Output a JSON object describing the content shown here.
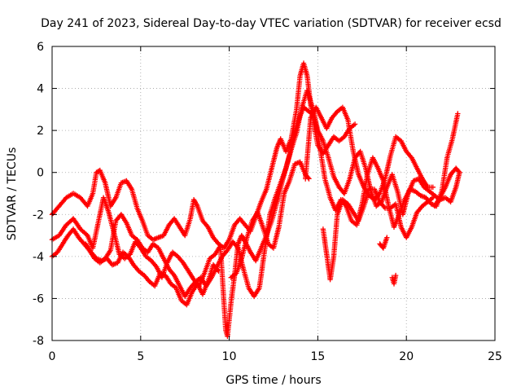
{
  "chart_data": {
    "type": "scatter",
    "title": "Day 241 of 2023, Sidereal Day-to-day VTEC variation (SDTVAR) for receiver ecsd",
    "xlabel": "GPS time / hours",
    "ylabel": "SDTVAR / TECUs",
    "xlim": [
      0,
      25
    ],
    "ylim": [
      -8,
      6
    ],
    "x_ticks": [
      0,
      5,
      10,
      15,
      20,
      25
    ],
    "y_ticks": [
      -8,
      -6,
      -4,
      -2,
      0,
      2,
      4,
      6
    ],
    "grid": true,
    "legend": "none",
    "marker": "plus",
    "color": "#ff0000",
    "traces": [
      [
        [
          0.0,
          -2.0
        ],
        [
          0.4,
          -1.6
        ],
        [
          0.8,
          -1.2
        ],
        [
          1.2,
          -1.0
        ],
        [
          1.6,
          -1.2
        ],
        [
          2.0,
          -1.6
        ],
        [
          2.3,
          -1.0
        ],
        [
          2.5,
          0.0
        ],
        [
          2.7,
          0.1
        ],
        [
          3.0,
          -0.5
        ],
        [
          3.3,
          -1.6
        ],
        [
          3.6,
          -1.2
        ],
        [
          3.9,
          -0.5
        ],
        [
          4.2,
          -0.4
        ],
        [
          4.5,
          -0.8
        ],
        [
          4.8,
          -1.7
        ],
        [
          5.1,
          -2.3
        ],
        [
          5.4,
          -3.0
        ],
        [
          5.7,
          -3.2
        ],
        [
          6.0,
          -3.1
        ],
        [
          6.3,
          -3.0
        ],
        [
          6.6,
          -2.5
        ],
        [
          6.9,
          -2.2
        ],
        [
          7.2,
          -2.6
        ],
        [
          7.5,
          -3.0
        ],
        [
          7.8,
          -2.2
        ],
        [
          8.0,
          -1.3
        ],
        [
          8.2,
          -1.6
        ],
        [
          8.5,
          -2.3
        ],
        [
          8.8,
          -2.6
        ],
        [
          9.1,
          -3.1
        ],
        [
          9.4,
          -3.4
        ],
        [
          9.7,
          -3.6
        ],
        [
          10.0,
          -3.2
        ],
        [
          10.3,
          -2.5
        ],
        [
          10.6,
          -2.2
        ],
        [
          10.9,
          -2.5
        ],
        [
          11.2,
          -2.8
        ],
        [
          11.5,
          -2.1
        ],
        [
          11.8,
          -1.4
        ],
        [
          12.1,
          -0.8
        ],
        [
          12.4,
          0.2
        ],
        [
          12.7,
          1.2
        ],
        [
          12.9,
          1.6
        ],
        [
          13.2,
          1.0
        ],
        [
          13.5,
          1.6
        ],
        [
          13.8,
          3.0
        ],
        [
          14.0,
          4.6
        ],
        [
          14.2,
          5.2
        ],
        [
          14.4,
          4.6
        ],
        [
          14.6,
          3.2
        ],
        [
          14.8,
          2.2
        ],
        [
          15.0,
          1.3
        ],
        [
          15.3,
          0.9
        ],
        [
          15.6,
          1.3
        ],
        [
          15.9,
          1.7
        ],
        [
          16.2,
          1.5
        ],
        [
          16.5,
          1.7
        ],
        [
          16.8,
          2.1
        ],
        [
          17.1,
          2.3
        ]
      ],
      [
        [
          0.0,
          -4.0
        ],
        [
          0.3,
          -3.8
        ],
        [
          0.6,
          -3.4
        ],
        [
          0.9,
          -3.0
        ],
        [
          1.2,
          -2.7
        ],
        [
          1.5,
          -3.1
        ],
        [
          1.8,
          -3.4
        ],
        [
          2.1,
          -3.7
        ],
        [
          2.4,
          -4.1
        ],
        [
          2.7,
          -4.3
        ],
        [
          3.0,
          -4.1
        ],
        [
          3.3,
          -3.7
        ],
        [
          3.6,
          -2.3
        ],
        [
          3.9,
          -2.0
        ],
        [
          4.2,
          -2.4
        ],
        [
          4.5,
          -3.0
        ],
        [
          4.8,
          -3.2
        ],
        [
          5.1,
          -3.6
        ],
        [
          5.4,
          -3.8
        ],
        [
          5.7,
          -3.4
        ],
        [
          6.0,
          -3.6
        ],
        [
          6.3,
          -4.1
        ],
        [
          6.6,
          -4.6
        ],
        [
          6.9,
          -4.9
        ],
        [
          7.2,
          -5.4
        ],
        [
          7.5,
          -5.9
        ],
        [
          7.8,
          -5.5
        ],
        [
          8.1,
          -5.2
        ],
        [
          8.4,
          -5.0
        ],
        [
          8.7,
          -5.4
        ],
        [
          9.0,
          -5.0
        ],
        [
          9.3,
          -4.5
        ],
        [
          9.6,
          -4.0
        ],
        [
          9.9,
          -3.7
        ],
        [
          10.2,
          -3.3
        ],
        [
          10.5,
          -3.6
        ],
        [
          10.8,
          -4.6
        ],
        [
          11.1,
          -5.5
        ],
        [
          11.4,
          -5.9
        ],
        [
          11.7,
          -5.5
        ],
        [
          12.0,
          -3.7
        ],
        [
          12.3,
          -2.0
        ],
        [
          12.6,
          -1.2
        ],
        [
          12.9,
          -0.5
        ],
        [
          13.2,
          0.2
        ],
        [
          13.5,
          1.1
        ],
        [
          13.8,
          1.9
        ],
        [
          14.1,
          3.1
        ],
        [
          14.4,
          3.9
        ],
        [
          14.7,
          3.1
        ],
        [
          15.0,
          2.0
        ],
        [
          15.3,
          1.5
        ],
        [
          15.6,
          0.7
        ],
        [
          15.9,
          -0.2
        ],
        [
          16.2,
          -0.7
        ],
        [
          16.5,
          -1.0
        ],
        [
          16.8,
          -0.3
        ],
        [
          17.1,
          0.7
        ],
        [
          17.4,
          1.0
        ],
        [
          17.7,
          0.2
        ],
        [
          18.0,
          -0.9
        ],
        [
          18.3,
          -1.6
        ],
        [
          18.6,
          -1.4
        ],
        [
          18.9,
          -0.7
        ],
        [
          19.2,
          -0.1
        ],
        [
          19.5,
          -0.9
        ],
        [
          19.8,
          -2.0
        ],
        [
          20.1,
          -1.0
        ],
        [
          20.4,
          -0.4
        ],
        [
          20.7,
          -0.3
        ],
        [
          21.0,
          -0.7
        ],
        [
          21.3,
          -0.9
        ],
        [
          21.6,
          -1.1
        ],
        [
          21.9,
          -1.3
        ],
        [
          22.2,
          -1.2
        ],
        [
          22.5,
          -1.4
        ],
        [
          22.8,
          -0.7
        ],
        [
          23.0,
          0.0
        ]
      ],
      [
        [
          0.0,
          -3.2
        ],
        [
          0.4,
          -3.0
        ],
        [
          0.8,
          -2.5
        ],
        [
          1.2,
          -2.2
        ],
        [
          1.6,
          -2.7
        ],
        [
          2.0,
          -3.0
        ],
        [
          2.3,
          -3.6
        ],
        [
          2.6,
          -2.4
        ],
        [
          2.9,
          -1.2
        ],
        [
          3.2,
          -1.9
        ],
        [
          3.5,
          -2.9
        ],
        [
          3.8,
          -3.9
        ],
        [
          4.1,
          -4.1
        ],
        [
          4.4,
          -3.9
        ],
        [
          4.7,
          -3.3
        ],
        [
          5.0,
          -3.6
        ],
        [
          5.3,
          -4.0
        ],
        [
          5.6,
          -4.2
        ],
        [
          5.9,
          -4.5
        ],
        [
          6.2,
          -5.0
        ],
        [
          6.5,
          -4.3
        ],
        [
          6.8,
          -3.8
        ],
        [
          7.1,
          -4.0
        ],
        [
          7.4,
          -4.3
        ],
        [
          7.7,
          -4.7
        ],
        [
          8.0,
          -5.1
        ],
        [
          8.3,
          -5.4
        ],
        [
          8.6,
          -4.8
        ],
        [
          8.9,
          -4.1
        ],
        [
          9.2,
          -3.9
        ],
        [
          9.5,
          -3.5
        ],
        [
          9.8,
          -7.5
        ],
        [
          9.9,
          -7.8
        ],
        [
          10.1,
          -6.2
        ],
        [
          10.3,
          -4.9
        ],
        [
          10.5,
          -3.4
        ],
        [
          10.7,
          -3.0
        ],
        [
          10.9,
          -3.3
        ],
        [
          11.2,
          -3.8
        ],
        [
          11.5,
          -4.2
        ],
        [
          11.8,
          -3.6
        ],
        [
          12.1,
          -3.0
        ],
        [
          12.4,
          -2.3
        ],
        [
          12.7,
          -1.4
        ],
        [
          13.0,
          -0.4
        ],
        [
          13.3,
          0.5
        ],
        [
          13.6,
          1.5
        ],
        [
          13.9,
          2.5
        ],
        [
          14.2,
          3.1
        ],
        [
          14.5,
          2.9
        ],
        [
          14.8,
          2.7
        ],
        [
          15.1,
          1.3
        ],
        [
          15.4,
          -0.3
        ],
        [
          15.7,
          -1.2
        ],
        [
          16.0,
          -1.8
        ],
        [
          16.3,
          -1.3
        ],
        [
          16.6,
          -1.6
        ],
        [
          16.9,
          -2.3
        ],
        [
          17.2,
          -2.5
        ],
        [
          17.5,
          -1.5
        ],
        [
          17.8,
          -0.1
        ],
        [
          18.1,
          0.7
        ],
        [
          18.4,
          0.2
        ],
        [
          18.7,
          -0.4
        ],
        [
          19.0,
          -1.6
        ],
        [
          19.3,
          -2.6
        ],
        [
          19.6,
          -2.0
        ],
        [
          19.9,
          -1.3
        ],
        [
          20.2,
          -0.8
        ],
        [
          20.5,
          -0.9
        ],
        [
          20.8,
          -1.1
        ],
        [
          21.1,
          -1.2
        ],
        [
          21.4,
          -1.5
        ],
        [
          21.7,
          -1.6
        ],
        [
          22.0,
          -0.9
        ],
        [
          22.3,
          0.7
        ],
        [
          22.6,
          1.6
        ],
        [
          22.9,
          2.8
        ]
      ],
      [
        [
          1.9,
          -3.4
        ],
        [
          2.2,
          -3.8
        ],
        [
          2.5,
          -4.1
        ],
        [
          2.8,
          -4.2
        ],
        [
          3.1,
          -4.1
        ],
        [
          3.4,
          -4.4
        ],
        [
          3.7,
          -4.3
        ],
        [
          4.0,
          -3.8
        ],
        [
          4.3,
          -4.0
        ],
        [
          4.6,
          -4.4
        ],
        [
          4.9,
          -4.7
        ],
        [
          5.2,
          -4.9
        ],
        [
          5.5,
          -5.2
        ],
        [
          5.8,
          -5.4
        ],
        [
          6.1,
          -4.8
        ],
        [
          6.4,
          -4.9
        ],
        [
          6.7,
          -5.3
        ],
        [
          7.0,
          -5.5
        ],
        [
          7.3,
          -6.1
        ],
        [
          7.6,
          -6.3
        ],
        [
          7.9,
          -5.7
        ],
        [
          8.2,
          -5.3
        ],
        [
          8.5,
          -5.8
        ],
        [
          8.8,
          -5.2
        ],
        [
          9.1,
          -4.4
        ],
        [
          9.4,
          -4.7
        ]
      ],
      [
        [
          10.1,
          -5.0
        ],
        [
          10.4,
          -4.8
        ],
        [
          10.7,
          -4.1
        ],
        [
          11.0,
          -3.1
        ],
        [
          11.3,
          -2.3
        ],
        [
          11.6,
          -1.9
        ],
        [
          11.9,
          -2.6
        ],
        [
          12.2,
          -3.4
        ],
        [
          12.5,
          -3.6
        ],
        [
          12.8,
          -2.6
        ],
        [
          13.1,
          -1.0
        ],
        [
          13.4,
          -0.4
        ],
        [
          13.7,
          0.4
        ],
        [
          14.0,
          0.5
        ],
        [
          14.3,
          -0.1
        ],
        [
          14.5,
          -0.3
        ]
      ],
      [
        [
          15.3,
          -2.7
        ],
        [
          15.5,
          -3.9
        ],
        [
          15.7,
          -5.1
        ],
        [
          15.9,
          -4.0
        ],
        [
          16.1,
          -2.0
        ],
        [
          16.4,
          -1.3
        ],
        [
          16.7,
          -1.5
        ],
        [
          17.0,
          -1.9
        ],
        [
          17.3,
          -2.3
        ],
        [
          17.6,
          -1.6
        ],
        [
          17.9,
          -0.8
        ],
        [
          18.2,
          -0.8
        ],
        [
          18.5,
          -1.4
        ],
        [
          18.8,
          -1.7
        ],
        [
          19.1,
          -1.7
        ],
        [
          19.4,
          -1.5
        ],
        [
          19.7,
          -2.6
        ],
        [
          20.0,
          -3.1
        ],
        [
          20.3,
          -2.6
        ],
        [
          20.6,
          -1.9
        ],
        [
          20.9,
          -1.6
        ],
        [
          21.2,
          -1.4
        ],
        [
          21.5,
          -1.2
        ]
      ],
      [
        [
          14.3,
          -0.3
        ],
        [
          14.6,
          2.6
        ],
        [
          14.9,
          3.1
        ],
        [
          15.2,
          2.6
        ],
        [
          15.5,
          2.1
        ],
        [
          15.8,
          2.6
        ],
        [
          16.1,
          2.9
        ],
        [
          16.4,
          3.1
        ],
        [
          16.7,
          2.5
        ],
        [
          17.0,
          1.0
        ],
        [
          17.3,
          -0.1
        ],
        [
          17.6,
          -0.7
        ],
        [
          17.9,
          -1.1
        ],
        [
          18.2,
          -1.3
        ],
        [
          18.5,
          -1.0
        ],
        [
          18.8,
          -0.3
        ],
        [
          19.1,
          0.8
        ],
        [
          19.4,
          1.7
        ],
        [
          19.7,
          1.5
        ],
        [
          20.0,
          1.0
        ],
        [
          20.3,
          0.7
        ],
        [
          20.6,
          0.2
        ],
        [
          20.9,
          -0.3
        ],
        [
          21.2,
          -0.7
        ],
        [
          21.5,
          -0.7
        ]
      ],
      [
        [
          18.5,
          -3.4
        ],
        [
          18.7,
          -3.6
        ],
        [
          18.9,
          -3.1
        ]
      ],
      [
        [
          19.2,
          -5.0
        ],
        [
          19.3,
          -5.3
        ],
        [
          19.4,
          -4.9
        ]
      ],
      [
        [
          21.6,
          -1.6
        ],
        [
          21.9,
          -1.2
        ],
        [
          22.2,
          -0.7
        ],
        [
          22.5,
          -0.1
        ],
        [
          22.8,
          0.2
        ],
        [
          23.0,
          0.0
        ]
      ]
    ]
  }
}
